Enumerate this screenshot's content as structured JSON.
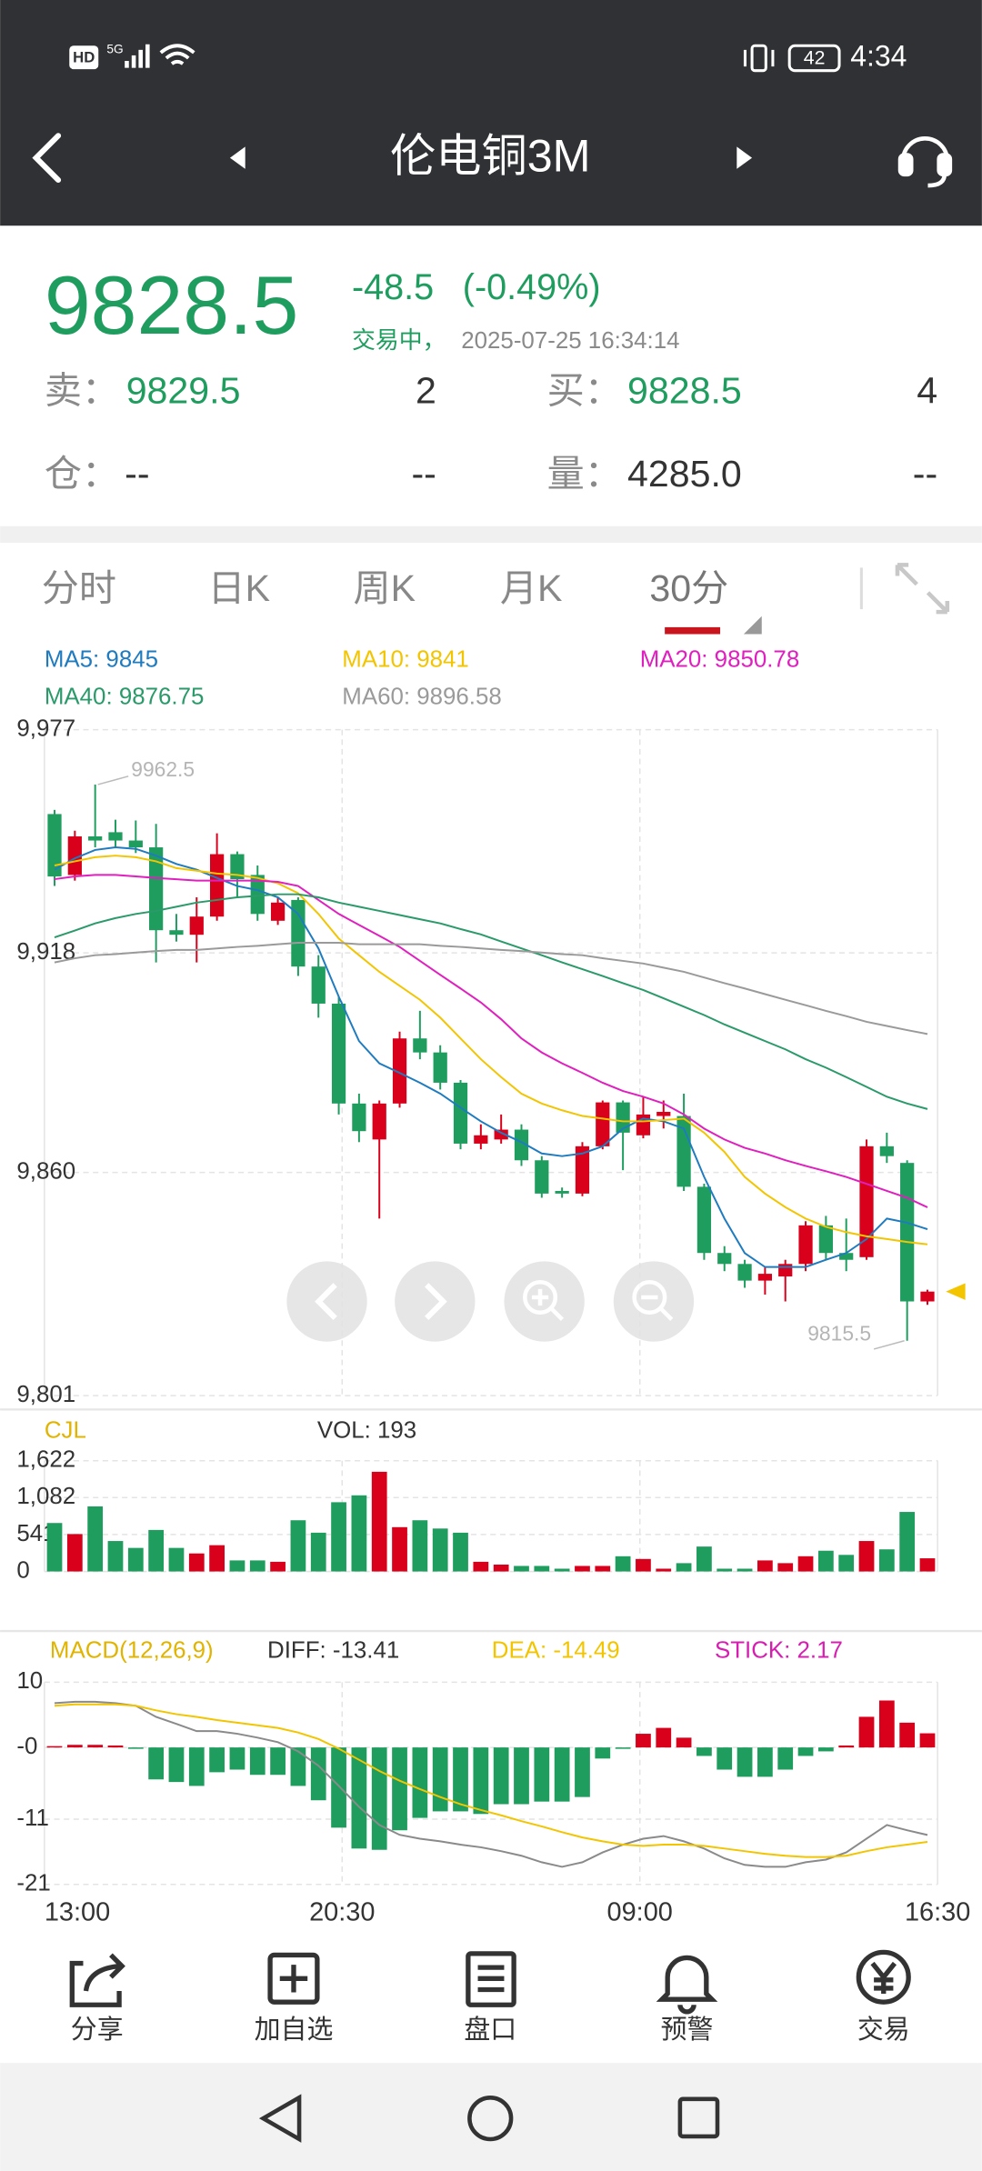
{
  "status_bar": {
    "hd": "HD",
    "network": "5G",
    "battery": "42",
    "time": "4:34"
  },
  "nav": {
    "title": "伦电铜3M"
  },
  "quote": {
    "price": "9828.5",
    "change": "-48.5",
    "change_pct": "(-0.49%)",
    "status": "交易中，",
    "timestamp": "2025-07-25 16:34:14",
    "sell_label": "卖：",
    "sell_price": "9829.5",
    "sell_qty": "2",
    "buy_label": "买：",
    "buy_price": "9828.5",
    "buy_qty": "4",
    "oi_label": "仓：",
    "oi": "--",
    "oi_change": "--",
    "volume_label": "量：",
    "volume": "4285.0",
    "volume_change": "--"
  },
  "tabs": [
    "分时",
    "日K",
    "周K",
    "月K",
    "30分"
  ],
  "chart_data": [
    {
      "type": "candlestick",
      "up_color": "#d9001b",
      "down_color": "#1f9d5f",
      "ylim": [
        9801,
        9977
      ],
      "yticks": [
        {
          "value": 9977,
          "label": "9,977"
        },
        {
          "value": 9918,
          "label": "9,918"
        },
        {
          "value": 9860,
          "label": "9,860"
        },
        {
          "value": 9801,
          "label": "9,801"
        }
      ],
      "grid": true,
      "high_mark": 9962.5,
      "low_mark": 9815.5,
      "open": [
        9954.7,
        9938.6,
        9948.8,
        9949.9,
        9947.7,
        9945.9,
        9924.0,
        9922.8,
        9927.6,
        9944.1,
        9938.6,
        9926.5,
        9932.0,
        9914.4,
        9904.6,
        9878.2,
        9868.7,
        9878.2,
        9895.4,
        9891.7,
        9883.7,
        9867.6,
        9868.7,
        9871.3,
        9863.2,
        9855.1,
        9854.4,
        9866.9,
        9878.5,
        9869.8,
        9874.9,
        9874.9,
        9856.2,
        9838.7,
        9835.8,
        9831.4,
        9832.5,
        9835.8,
        9846.0,
        9838.7,
        9837.6,
        9866.9,
        9862.5,
        9825.9
      ],
      "high": [
        9955.8,
        9950.3,
        9962.5,
        9953.2,
        9953.0,
        9952.1,
        9928.3,
        9932.7,
        9949.6,
        9944.8,
        9941.1,
        9932.7,
        9932.7,
        9917.4,
        9906.4,
        9880.8,
        9879.0,
        9897.2,
        9902.7,
        9893.6,
        9884.4,
        9872.7,
        9875.3,
        9872.7,
        9864.3,
        9856.0,
        9868.0,
        9879.0,
        9879.0,
        9880.1,
        9879.0,
        9880.8,
        9857.0,
        9840.5,
        9836.9,
        9835.0,
        9836.9,
        9847.1,
        9848.5,
        9847.8,
        9868.7,
        9870.5,
        9863.2,
        9829.0
      ],
      "low": [
        9935.7,
        9937.1,
        9945.9,
        9945.9,
        9944.4,
        9915.5,
        9921.0,
        9915.5,
        9926.5,
        9932.7,
        9926.5,
        9925.4,
        9911.9,
        9900.9,
        9875.3,
        9868.0,
        9847.8,
        9877.1,
        9889.9,
        9881.9,
        9866.1,
        9866.1,
        9867.6,
        9861.7,
        9853.3,
        9853.3,
        9853.7,
        9866.1,
        9860.6,
        9869.0,
        9871.6,
        9855.1,
        9836.9,
        9833.9,
        9829.5,
        9827.7,
        9825.9,
        9833.9,
        9836.9,
        9833.9,
        9836.9,
        9862.5,
        9815.5,
        9825.0
      ],
      "close": [
        9938.2,
        9948.8,
        9947.7,
        9947.7,
        9945.9,
        9924.0,
        9922.8,
        9927.6,
        9944.1,
        9937.5,
        9928.3,
        9931.3,
        9914.4,
        9904.6,
        9878.2,
        9870.9,
        9878.2,
        9895.4,
        9891.7,
        9883.7,
        9867.6,
        9869.8,
        9871.3,
        9863.2,
        9854.4,
        9854.4,
        9866.9,
        9878.5,
        9870.5,
        9875.3,
        9876.0,
        9856.2,
        9838.7,
        9835.8,
        9831.4,
        9833.2,
        9835.8,
        9846.0,
        9838.7,
        9836.9,
        9866.9,
        9864.3,
        9825.9,
        9828.5
      ],
      "series": [
        {
          "name": "MA5: 9845",
          "color": "#1f7bc0",
          "values": [
            9940.0,
            9943.0,
            9945.2,
            9945.9,
            9945.5,
            9943.7,
            9941.5,
            9940.0,
            9937.8,
            9935.7,
            9934.6,
            9932.7,
            9928.3,
            9919.2,
            9906.4,
            9894.7,
            9888.8,
            9886.3,
            9883.7,
            9880.8,
            9877.1,
            9873.5,
            9870.5,
            9868.0,
            9865.0,
            9864.3,
            9865.0,
            9866.9,
            9871.6,
            9874.2,
            9873.5,
            9871.6,
            9858.8,
            9847.8,
            9838.7,
            9835.0,
            9835.0,
            9835.0,
            9836.9,
            9838.7,
            9842.4,
            9847.8,
            9846.7,
            9845.0
          ]
        },
        {
          "name": "MA10: 9841",
          "color": "#f2c500",
          "values": [
            9941.1,
            9942.2,
            9943.3,
            9943.7,
            9943.3,
            9942.2,
            9940.4,
            9939.7,
            9939.0,
            9938.6,
            9937.8,
            9936.4,
            9933.8,
            9928.3,
            9921.8,
            9917.4,
            9913.0,
            9909.3,
            9905.6,
            9900.9,
            9895.4,
            9889.9,
            9885.2,
            9880.8,
            9878.2,
            9876.4,
            9874.9,
            9874.2,
            9873.5,
            9873.5,
            9873.8,
            9874.2,
            9870.5,
            9865.4,
            9858.8,
            9854.4,
            9850.8,
            9847.8,
            9845.6,
            9844.2,
            9843.1,
            9842.4,
            9841.6,
            9841.0
          ]
        },
        {
          "name": "MA20: 9850.78",
          "color": "#e01fbf",
          "values": [
            9937.5,
            9938.2,
            9938.6,
            9938.6,
            9938.2,
            9937.8,
            9937.5,
            9937.1,
            9937.1,
            9937.1,
            9937.1,
            9936.8,
            9935.7,
            9932.0,
            9928.3,
            9925.4,
            9922.5,
            9919.6,
            9915.9,
            9912.2,
            9908.6,
            9904.9,
            9900.5,
            9895.4,
            9891.7,
            9888.8,
            9886.3,
            9883.7,
            9881.5,
            9880.0,
            9878.2,
            9875.3,
            9871.6,
            9868.7,
            9866.5,
            9865.0,
            9863.2,
            9861.7,
            9860.3,
            9858.8,
            9857.0,
            9855.1,
            9853.3,
            9850.78
          ]
        },
        {
          "name": "MA40: 9876.75",
          "color": "#2a9a6a",
          "values": [
            9922.1,
            9923.9,
            9925.8,
            9927.2,
            9928.3,
            9929.1,
            9930.2,
            9931.3,
            9932.0,
            9932.7,
            9933.1,
            9933.5,
            9933.5,
            9932.7,
            9931.3,
            9930.2,
            9929.1,
            9928.0,
            9926.9,
            9925.8,
            9924.3,
            9922.9,
            9921.0,
            9919.2,
            9917.4,
            9915.5,
            9913.7,
            9911.9,
            9910.0,
            9908.2,
            9906.0,
            9903.8,
            9901.6,
            9899.1,
            9896.9,
            9894.7,
            9892.5,
            9889.9,
            9887.7,
            9885.2,
            9882.6,
            9880.0,
            9878.2,
            9876.75
          ]
        },
        {
          "name": "MA60: 9896.58",
          "color": "#9a9a9a",
          "values": [
            9915.5,
            9916.6,
            9917.4,
            9917.7,
            9918.1,
            9918.5,
            9918.8,
            9918.8,
            9919.2,
            9919.6,
            9919.9,
            9920.3,
            9920.7,
            9920.7,
            9920.7,
            9920.3,
            9920.3,
            9920.3,
            9920.3,
            9919.9,
            9919.6,
            9919.2,
            9918.8,
            9918.5,
            9918.1,
            9917.7,
            9917.4,
            9916.6,
            9915.9,
            9915.2,
            9914.1,
            9913.0,
            9911.5,
            9910.0,
            9908.6,
            9907.1,
            9905.6,
            9904.2,
            9902.7,
            9901.3,
            9899.8,
            9898.7,
            9897.6,
            9896.58
          ]
        }
      ]
    },
    {
      "type": "volume",
      "title": "CJL",
      "subtitle": "VOL: 193",
      "ylim": [
        0,
        1622
      ],
      "yticks": [
        0,
        541,
        {
          "value": 1082,
          "label": "1,082"
        },
        {
          "value": 1622,
          "label": "1,622"
        }
      ],
      "values": [
        710,
        548,
        953,
        446,
        345,
        608,
        345,
        264,
        385,
        162,
        162,
        142,
        750,
        568,
        1014,
        1115,
        1460,
        649,
        750,
        629,
        568,
        142,
        101,
        81,
        81,
        41,
        81,
        81,
        223,
        183,
        41,
        122,
        365,
        41,
        41,
        162,
        122,
        223,
        304,
        243,
        446,
        324,
        872,
        193
      ]
    },
    {
      "type": "macd",
      "title": "MACD(12,26,9)",
      "ylim": [
        -21,
        10
      ],
      "yticks": [
        10,
        {
          "value": 0,
          "label": "-0"
        },
        -11,
        -21
      ],
      "x_labels": [
        "13:00",
        "20:30",
        "09:00",
        "16:30"
      ],
      "up_color": "#d9001b",
      "down_color": "#1f9d5f",
      "bars": {
        "name": "STICK: 2.17",
        "color": "#d61fb0",
        "values": [
          0.2,
          0.4,
          0.4,
          0.3,
          -0.1,
          -4.9,
          -5.3,
          -5.9,
          -3.8,
          -3.4,
          -4.2,
          -4.2,
          -5.9,
          -8.1,
          -12.3,
          -15.5,
          -15.7,
          -12.7,
          -10.8,
          -9.8,
          -9.8,
          -10.2,
          -8.7,
          -8.7,
          -8.3,
          -8.3,
          -7.6,
          -1.7,
          -0.2,
          2.1,
          3.0,
          1.5,
          -1.3,
          -3.4,
          -4.5,
          -4.5,
          -3.4,
          -1.3,
          -0.6,
          0.3,
          4.7,
          7.2,
          3.8,
          2.17
        ]
      },
      "series": [
        {
          "name": "DIFF: -13.41",
          "color": "#8a8a8a",
          "values": [
            6.8,
            7.0,
            7.0,
            6.8,
            6.4,
            4.7,
            3.6,
            2.5,
            2.5,
            2.1,
            1.5,
            0.8,
            -0.6,
            -2.8,
            -5.9,
            -9.1,
            -11.9,
            -13.4,
            -14.0,
            -14.4,
            -14.9,
            -15.3,
            -15.9,
            -16.6,
            -17.6,
            -18.3,
            -17.6,
            -16.1,
            -14.9,
            -14.0,
            -13.6,
            -14.4,
            -15.5,
            -17.0,
            -18.0,
            -18.3,
            -18.3,
            -17.6,
            -17.2,
            -16.1,
            -14.0,
            -11.9,
            -12.7,
            -13.41
          ]
        },
        {
          "name": "DEA: -14.49",
          "color": "#f2c500",
          "values": [
            6.4,
            6.6,
            6.6,
            6.6,
            6.4,
            5.7,
            5.1,
            4.7,
            4.2,
            3.8,
            3.4,
            3.0,
            2.3,
            1.3,
            -0.2,
            -1.9,
            -3.6,
            -5.1,
            -6.4,
            -7.6,
            -8.7,
            -9.6,
            -10.4,
            -11.3,
            -12.1,
            -13.0,
            -13.8,
            -14.4,
            -14.9,
            -15.1,
            -14.9,
            -14.9,
            -15.1,
            -15.5,
            -15.9,
            -16.3,
            -16.6,
            -16.8,
            -16.8,
            -16.6,
            -15.9,
            -15.3,
            -14.9,
            -14.49
          ]
        }
      ]
    }
  ],
  "toolbar": [
    "分享",
    "加自选",
    "盘口",
    "预警",
    "交易"
  ]
}
